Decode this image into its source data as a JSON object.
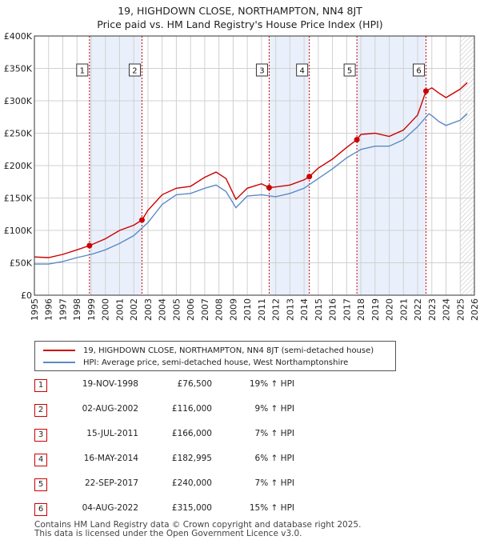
{
  "title_line1": "19, HIGHDOWN CLOSE, NORTHAMPTON, NN4 8JT",
  "title_line2": "Price paid vs. HM Land Registry's House Price Index (HPI)",
  "colors": {
    "price": "#cc0000",
    "hpi": "#5b8ac6",
    "band": "#eaf0fb",
    "grid": "#d0d0d0"
  },
  "legend": {
    "price": "19, HIGHDOWN CLOSE, NORTHAMPTON, NN4 8JT (semi-detached house)",
    "hpi": "HPI: Average price, semi-detached house, West Northamptonshire"
  },
  "sales": [
    {
      "n": "1",
      "date": "19-NOV-1998",
      "price": "£76,500",
      "hpi": "19% ↑ HPI"
    },
    {
      "n": "2",
      "date": "02-AUG-2002",
      "price": "£116,000",
      "hpi": "9% ↑ HPI"
    },
    {
      "n": "3",
      "date": "15-JUL-2011",
      "price": "£166,000",
      "hpi": "7% ↑ HPI"
    },
    {
      "n": "4",
      "date": "16-MAY-2014",
      "price": "£182,995",
      "hpi": "6% ↑ HPI"
    },
    {
      "n": "5",
      "date": "22-SEP-2017",
      "price": "£240,000",
      "hpi": "7% ↑ HPI"
    },
    {
      "n": "6",
      "date": "04-AUG-2022",
      "price": "£315,000",
      "hpi": "15% ↑ HPI"
    }
  ],
  "footer": {
    "line1": "Contains HM Land Registry data © Crown copyright and database right 2025.",
    "line2": "This data is licensed under the Open Government Licence v3.0."
  },
  "chart_data": {
    "type": "line",
    "title": "Price paid vs. HM Land Registry's House Price Index (HPI)",
    "xlim": [
      1995,
      2026
    ],
    "ylim": [
      0,
      400000
    ],
    "x_ticks": [
      "1995",
      "1996",
      "1997",
      "1998",
      "1999",
      "2000",
      "2001",
      "2002",
      "2003",
      "2004",
      "2005",
      "2006",
      "2007",
      "2008",
      "2009",
      "2010",
      "2011",
      "2012",
      "2013",
      "2014",
      "2015",
      "2016",
      "2017",
      "2018",
      "2019",
      "2020",
      "2021",
      "2022",
      "2023",
      "2024",
      "2025",
      "2026"
    ],
    "y_ticks": [
      {
        "v": 0,
        "label": "£0"
      },
      {
        "v": 50000,
        "label": "£50K"
      },
      {
        "v": 100000,
        "label": "£100K"
      },
      {
        "v": 150000,
        "label": "£150K"
      },
      {
        "v": 200000,
        "label": "£200K"
      },
      {
        "v": 250000,
        "label": "£250K"
      },
      {
        "v": 300000,
        "label": "£300K"
      },
      {
        "v": 350000,
        "label": "£350K"
      },
      {
        "v": 400000,
        "label": "£400K"
      }
    ],
    "bands": [
      [
        1998.88,
        2002.58
      ],
      [
        2011.54,
        2014.37
      ],
      [
        2017.72,
        2022.59
      ]
    ],
    "hatch_from": 2025.0,
    "sale_markers": [
      {
        "label": "1",
        "x": 1998.88,
        "price": 76500
      },
      {
        "label": "2",
        "x": 2002.58,
        "price": 116000
      },
      {
        "label": "3",
        "x": 2011.54,
        "price": 166000
      },
      {
        "label": "4",
        "x": 2014.37,
        "price": 182995
      },
      {
        "label": "5",
        "x": 2017.72,
        "price": 240000
      },
      {
        "label": "6",
        "x": 2022.59,
        "price": 315000
      }
    ],
    "series": [
      {
        "name": "19, HIGHDOWN CLOSE, NORTHAMPTON, NN4 8JT (semi-detached house)",
        "x": [
          1995,
          1996,
          1997,
          1998,
          1998.88,
          2000,
          2001,
          2002,
          2002.58,
          2003,
          2004,
          2005,
          2006,
          2007,
          2007.8,
          2008.5,
          2009.2,
          2010,
          2011,
          2011.54,
          2012,
          2013,
          2014,
          2014.37,
          2015,
          2016,
          2017,
          2017.72,
          2018,
          2019,
          2020,
          2021,
          2022,
          2022.59,
          2023,
          2023.5,
          2024,
          2025,
          2025.5
        ],
        "y": [
          59000,
          58000,
          63000,
          70000,
          76500,
          87000,
          100000,
          108000,
          116000,
          131000,
          155000,
          165000,
          168000,
          182000,
          190000,
          180000,
          148000,
          165000,
          172000,
          166000,
          167000,
          170000,
          178000,
          182995,
          196000,
          210000,
          228000,
          240000,
          248000,
          250000,
          245000,
          255000,
          278000,
          315000,
          320000,
          312000,
          305000,
          318000,
          328000
        ]
      },
      {
        "name": "HPI: Average price, semi-detached house, West Northamptonshire",
        "x": [
          1995,
          1996,
          1997,
          1998,
          1999,
          2000,
          2001,
          2002,
          2003,
          2004,
          2005,
          2006,
          2007,
          2007.8,
          2008.5,
          2009.2,
          2010,
          2011,
          2012,
          2013,
          2014,
          2015,
          2016,
          2017,
          2018,
          2019,
          2020,
          2021,
          2022,
          2022.8,
          2023,
          2023.5,
          2024,
          2025,
          2025.5
        ],
        "y": [
          48000,
          48000,
          52000,
          58000,
          63000,
          70000,
          80000,
          92000,
          112000,
          140000,
          155000,
          157000,
          165000,
          170000,
          160000,
          135000,
          153000,
          155000,
          152000,
          157000,
          165000,
          180000,
          195000,
          212000,
          225000,
          230000,
          230000,
          240000,
          260000,
          280000,
          277000,
          268000,
          262000,
          270000,
          280000
        ]
      }
    ]
  }
}
